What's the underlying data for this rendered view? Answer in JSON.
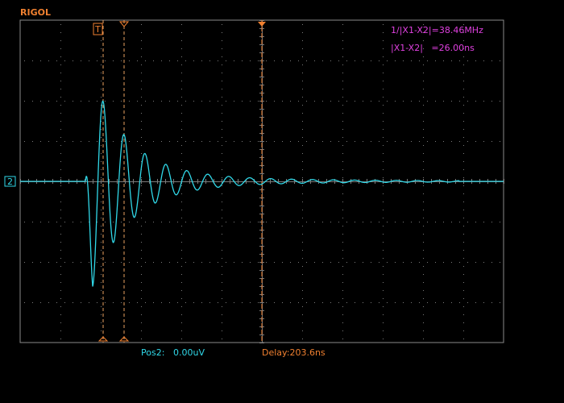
{
  "header": {
    "brand": "RIGOL"
  },
  "cursor_readout": {
    "frequency": "1/|X1-X2|=38.46MHz",
    "delta": "|X1-X2|   =26.00ns"
  },
  "markers": {
    "trigger": "T",
    "channel": "2"
  },
  "status": {
    "position_label": "Pos2:",
    "position_value": "0.00uV",
    "delay": "Delay:203.6ns"
  }
}
